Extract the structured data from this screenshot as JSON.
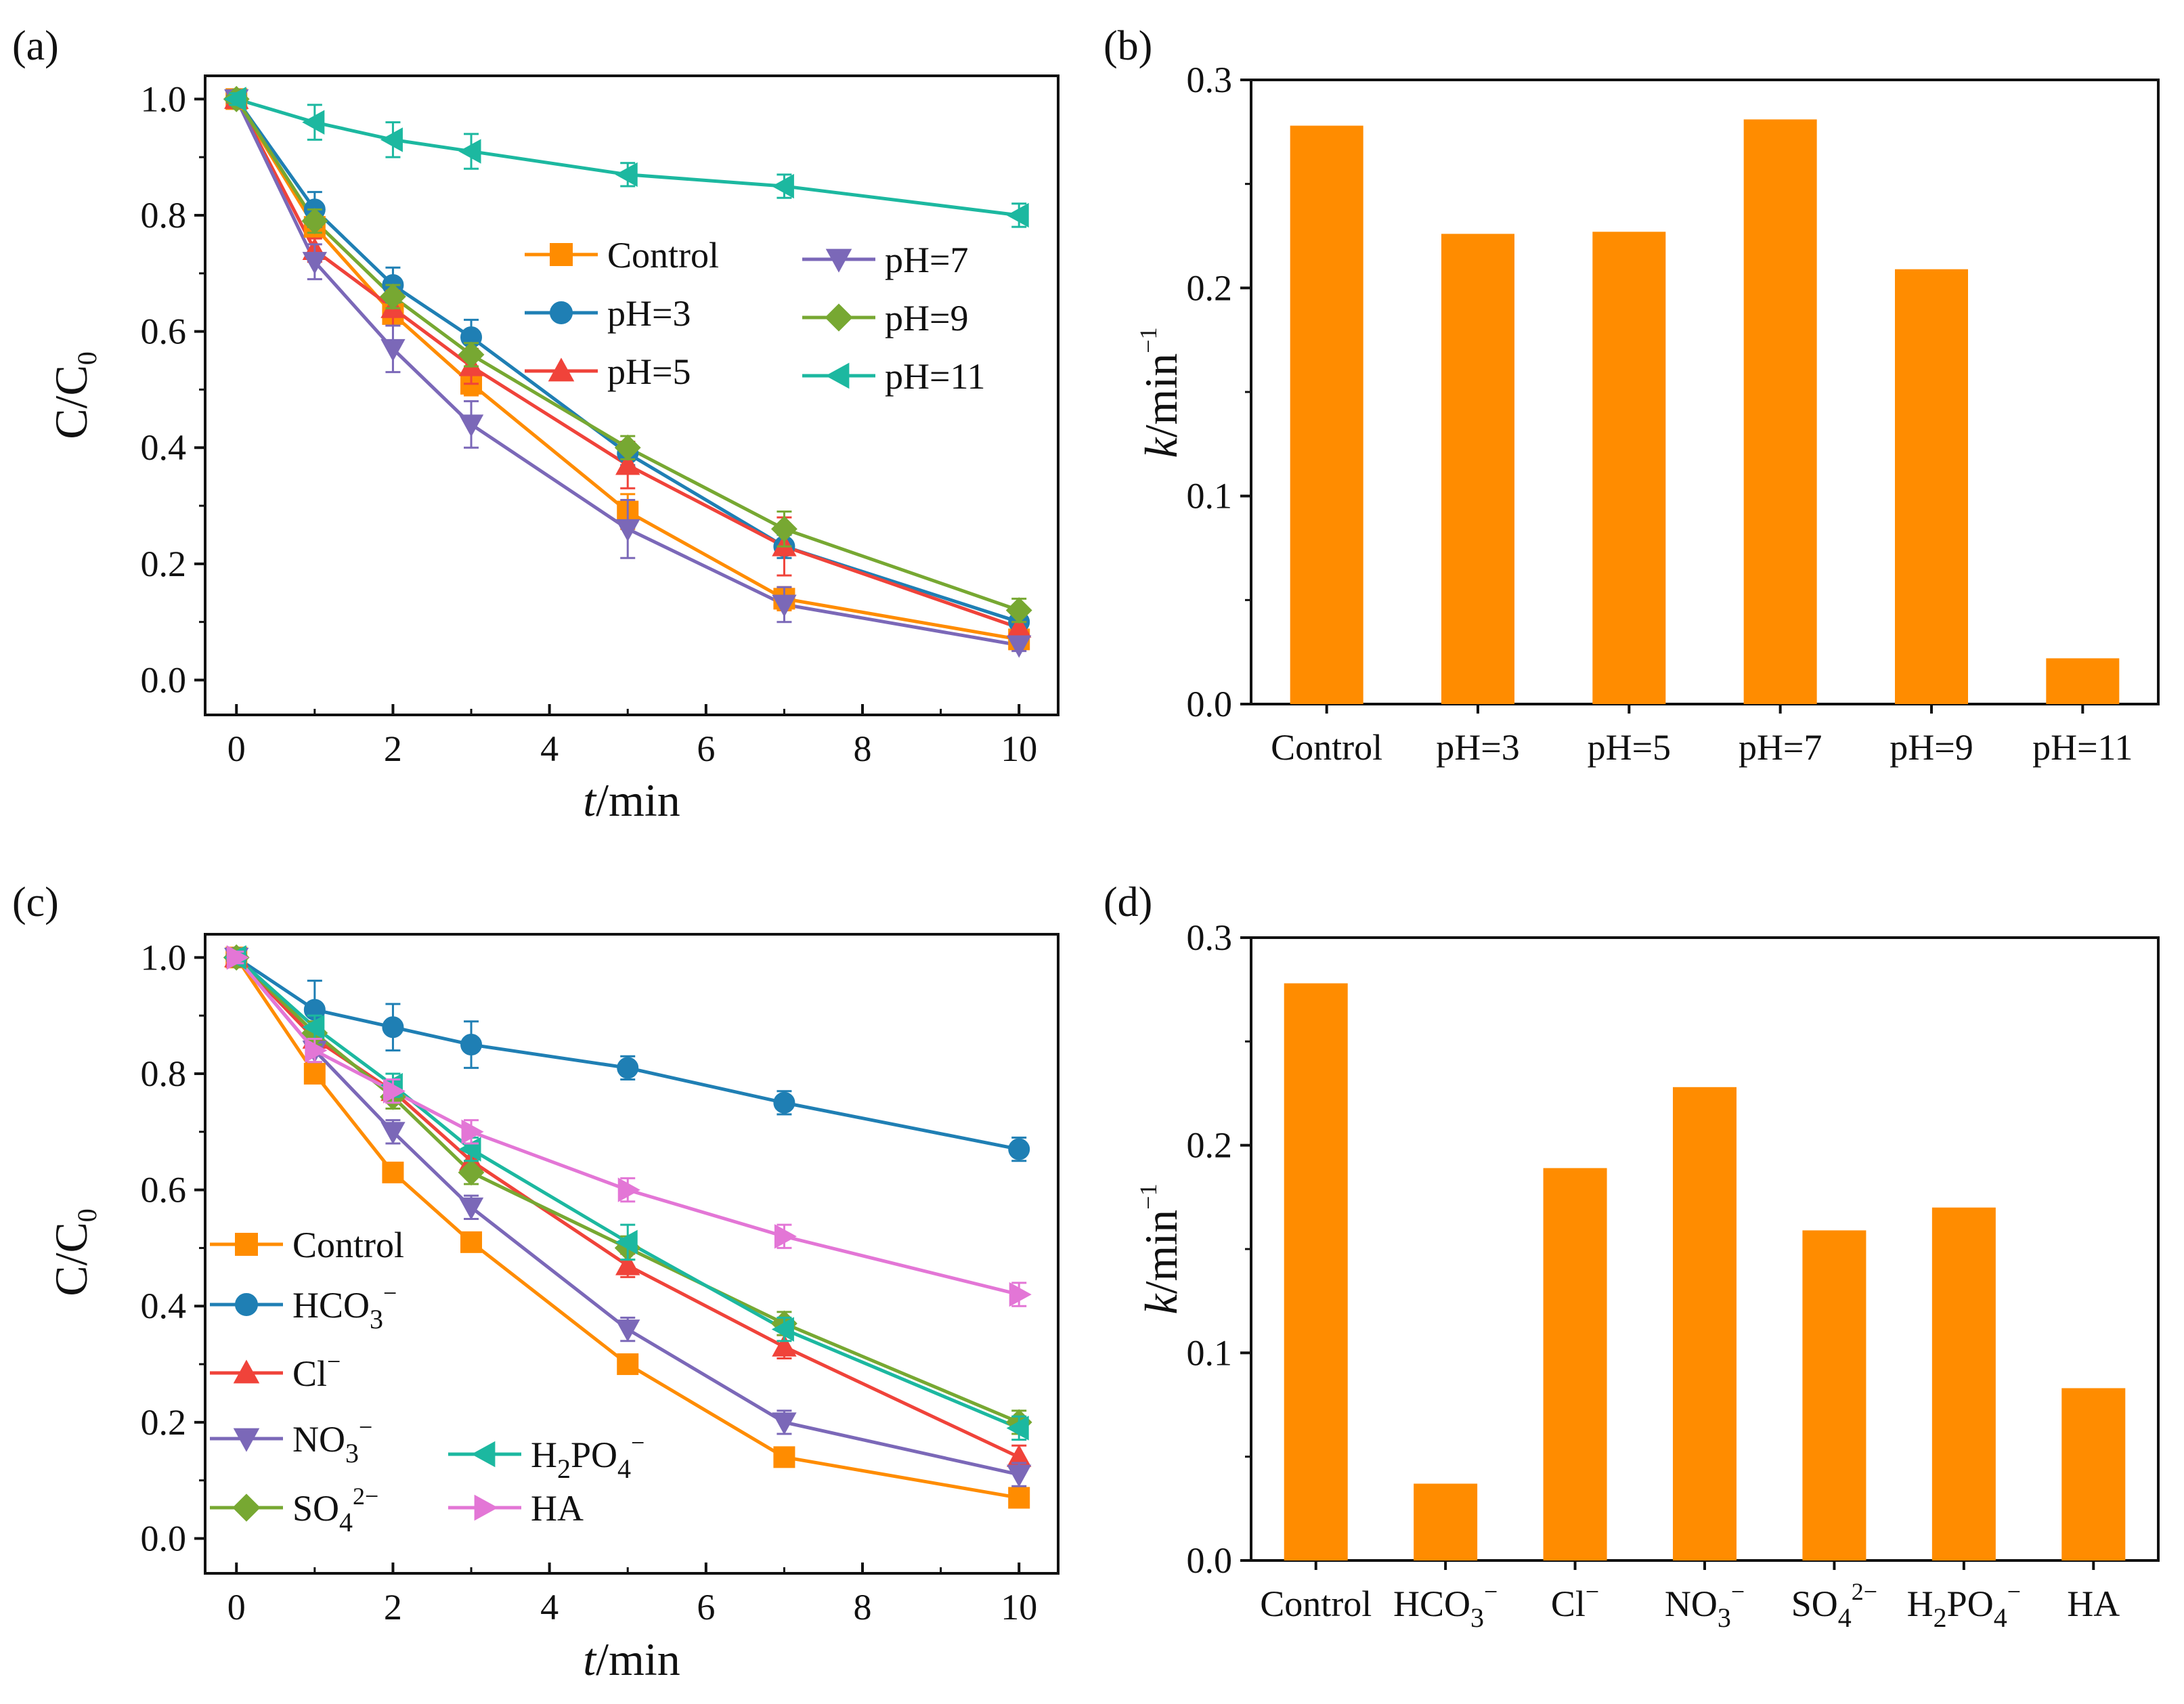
{
  "chart_data": [
    {
      "panel": "(a)",
      "type": "line",
      "xlabel_var": "t",
      "xlabel_unit": "/min",
      "ylabel_main": "C/C",
      "ylabel_sub": "0",
      "xlim": [
        -0.4,
        10.5
      ],
      "ylim": [
        -0.06,
        1.04
      ],
      "xticks": [
        0,
        2,
        4,
        6,
        8,
        10
      ],
      "yticks": [
        0.0,
        0.2,
        0.4,
        0.6,
        0.8,
        1.0
      ],
      "x": [
        0,
        1,
        2,
        3,
        5,
        7,
        10
      ],
      "series": [
        {
          "name": "Control",
          "label_parts": [
            [
              "Control",
              "n"
            ]
          ],
          "marker": "square",
          "color": "#ff8c00",
          "values": [
            1.0,
            0.78,
            0.63,
            0.51,
            0.29,
            0.14,
            0.07
          ],
          "errors": [
            0.01,
            0.01,
            0.02,
            0.02,
            0.03,
            0.02,
            0.01
          ]
        },
        {
          "name": "pH=3",
          "label_parts": [
            [
              "pH=3",
              "n"
            ]
          ],
          "marker": "circle",
          "color": "#1f7fb4",
          "values": [
            1.0,
            0.81,
            0.68,
            0.59,
            0.39,
            0.23,
            0.1
          ],
          "errors": [
            0.01,
            0.03,
            0.03,
            0.03,
            0.02,
            0.02,
            0.01
          ]
        },
        {
          "name": "pH=5",
          "label_parts": [
            [
              "pH=5",
              "n"
            ]
          ],
          "marker": "triangle-up",
          "color": "#f0433a",
          "values": [
            1.0,
            0.74,
            0.64,
            0.54,
            0.37,
            0.23,
            0.09
          ],
          "errors": [
            0.01,
            0.02,
            0.03,
            0.03,
            0.04,
            0.05,
            0.01
          ]
        },
        {
          "name": "pH=7",
          "label_parts": [
            [
              "pH=7",
              "n"
            ]
          ],
          "marker": "triangle-down",
          "color": "#7b68b8",
          "values": [
            1.0,
            0.72,
            0.57,
            0.44,
            0.26,
            0.13,
            0.06
          ],
          "errors": [
            0.01,
            0.03,
            0.04,
            0.04,
            0.05,
            0.03,
            0.01
          ]
        },
        {
          "name": "pH=9",
          "label_parts": [
            [
              "pH=9",
              "n"
            ]
          ],
          "marker": "diamond",
          "color": "#77a832",
          "values": [
            1.0,
            0.79,
            0.66,
            0.56,
            0.4,
            0.26,
            0.12
          ],
          "errors": [
            0.01,
            0.02,
            0.02,
            0.02,
            0.02,
            0.03,
            0.02
          ]
        },
        {
          "name": "pH=11",
          "label_parts": [
            [
              "pH=11",
              "n"
            ]
          ],
          "marker": "triangle-left",
          "color": "#1cb8a0",
          "values": [
            1.0,
            0.96,
            0.93,
            0.91,
            0.87,
            0.85,
            0.8
          ],
          "errors": [
            0.01,
            0.03,
            0.03,
            0.03,
            0.02,
            0.02,
            0.02
          ]
        }
      ],
      "legend": "upper-right, 2 columns"
    },
    {
      "panel": "(b)",
      "type": "bar",
      "ylabel_var": "k",
      "ylabel_unit": "/min",
      "ylabel_sup": "−1",
      "ylim": [
        0,
        0.3
      ],
      "yticks": [
        0.0,
        0.1,
        0.2,
        0.3
      ],
      "categories": [
        "Control",
        "pH=3",
        "pH=5",
        "pH=7",
        "pH=9",
        "pH=11"
      ],
      "category_parts": [
        [
          [
            "Control",
            "n"
          ]
        ],
        [
          [
            "pH=3",
            "n"
          ]
        ],
        [
          [
            "pH=5",
            "n"
          ]
        ],
        [
          [
            "pH=7",
            "n"
          ]
        ],
        [
          [
            "pH=9",
            "n"
          ]
        ],
        [
          [
            "pH=11",
            "n"
          ]
        ]
      ],
      "values": [
        0.278,
        0.226,
        0.227,
        0.281,
        0.209,
        0.022
      ],
      "color": "#ff8c00"
    },
    {
      "panel": "(c)",
      "type": "line",
      "xlabel_var": "t",
      "xlabel_unit": "/min",
      "ylabel_main": "C/C",
      "ylabel_sub": "0",
      "xlim": [
        -0.4,
        10.5
      ],
      "ylim": [
        -0.06,
        1.04
      ],
      "xticks": [
        0,
        2,
        4,
        6,
        8,
        10
      ],
      "yticks": [
        0.0,
        0.2,
        0.4,
        0.6,
        0.8,
        1.0
      ],
      "x": [
        0,
        1,
        2,
        3,
        5,
        7,
        10
      ],
      "series": [
        {
          "name": "Control",
          "label_parts": [
            [
              "Control",
              "n"
            ]
          ],
          "marker": "square",
          "color": "#ff8c00",
          "values": [
            1.0,
            0.8,
            0.63,
            0.51,
            0.3,
            0.14,
            0.07
          ],
          "errors": [
            0.01,
            0.01,
            0.01,
            0.01,
            0.01,
            0.01,
            0.01
          ]
        },
        {
          "name": "HCO3−",
          "label_parts": [
            [
              "HCO",
              "n"
            ],
            [
              "3",
              "sub"
            ],
            [
              "−",
              "sup"
            ]
          ],
          "marker": "circle",
          "color": "#1f7fb4",
          "values": [
            1.0,
            0.91,
            0.88,
            0.85,
            0.81,
            0.75,
            0.67
          ],
          "errors": [
            0.01,
            0.05,
            0.04,
            0.04,
            0.02,
            0.02,
            0.02
          ]
        },
        {
          "name": "Cl−",
          "label_parts": [
            [
              "Cl",
              "n"
            ],
            [
              "−",
              "sup"
            ]
          ],
          "marker": "triangle-up",
          "color": "#f0433a",
          "values": [
            1.0,
            0.86,
            0.77,
            0.65,
            0.47,
            0.33,
            0.14
          ],
          "errors": [
            0.01,
            0.02,
            0.02,
            0.02,
            0.02,
            0.02,
            0.02
          ]
        },
        {
          "name": "NO3−",
          "label_parts": [
            [
              "NO",
              "n"
            ],
            [
              "3",
              "sub"
            ],
            [
              "−",
              "sup"
            ]
          ],
          "marker": "triangle-down",
          "color": "#7b68b8",
          "values": [
            1.0,
            0.84,
            0.7,
            0.57,
            0.36,
            0.2,
            0.11
          ],
          "errors": [
            0.01,
            0.02,
            0.02,
            0.02,
            0.02,
            0.02,
            0.02
          ]
        },
        {
          "name": "SO42−",
          "label_parts": [
            [
              "SO",
              "n"
            ],
            [
              "4",
              "sub"
            ],
            [
              "2−",
              "sup"
            ]
          ],
          "marker": "diamond",
          "color": "#77a832",
          "values": [
            1.0,
            0.87,
            0.76,
            0.63,
            0.5,
            0.37,
            0.2
          ],
          "errors": [
            0.01,
            0.02,
            0.02,
            0.02,
            0.02,
            0.02,
            0.02
          ]
        },
        {
          "name": "H2PO4−",
          "label_parts": [
            [
              "H",
              "n"
            ],
            [
              "2",
              "sub"
            ],
            [
              "PO",
              "n"
            ],
            [
              "4",
              "sub"
            ],
            [
              "−",
              "sup"
            ]
          ],
          "marker": "triangle-left",
          "color": "#1cb8a0",
          "values": [
            1.0,
            0.88,
            0.78,
            0.67,
            0.51,
            0.36,
            0.19
          ],
          "errors": [
            0.01,
            0.02,
            0.02,
            0.02,
            0.03,
            0.02,
            0.02
          ]
        },
        {
          "name": "HA",
          "label_parts": [
            [
              "HA",
              "n"
            ]
          ],
          "marker": "triangle-right",
          "color": "#e376d6",
          "values": [
            1.0,
            0.84,
            0.77,
            0.7,
            0.6,
            0.52,
            0.42
          ],
          "errors": [
            0.01,
            0.02,
            0.02,
            0.02,
            0.02,
            0.02,
            0.02
          ]
        }
      ],
      "legend": "lower-left, 2 columns"
    },
    {
      "panel": "(d)",
      "type": "bar",
      "ylabel_var": "k",
      "ylabel_unit": "/min",
      "ylabel_sup": "−1",
      "ylim": [
        0,
        0.3
      ],
      "yticks": [
        0.0,
        0.1,
        0.2,
        0.3
      ],
      "categories": [
        "Control",
        "HCO3−",
        "Cl−",
        "NO3−",
        "SO42−",
        "H2PO4−",
        "HA"
      ],
      "category_parts": [
        [
          [
            "Control",
            "n"
          ]
        ],
        [
          [
            "HCO",
            "n"
          ],
          [
            "3",
            "sub"
          ],
          [
            "−",
            "sup"
          ]
        ],
        [
          [
            "Cl",
            "n"
          ],
          [
            "−",
            "sup"
          ]
        ],
        [
          [
            "NO",
            "n"
          ],
          [
            "3",
            "sub"
          ],
          [
            "−",
            "sup"
          ]
        ],
        [
          [
            "SO",
            "n"
          ],
          [
            "4",
            "sub"
          ],
          [
            "2−",
            "sup"
          ]
        ],
        [
          [
            "H",
            "n"
          ],
          [
            "2",
            "sub"
          ],
          [
            "PO",
            "n"
          ],
          [
            "4",
            "sub"
          ],
          [
            "−",
            "sup"
          ]
        ],
        [
          [
            "HA",
            "n"
          ]
        ]
      ],
      "values": [
        0.278,
        0.037,
        0.189,
        0.228,
        0.159,
        0.17,
        0.083
      ],
      "color": "#ff8c00"
    }
  ]
}
